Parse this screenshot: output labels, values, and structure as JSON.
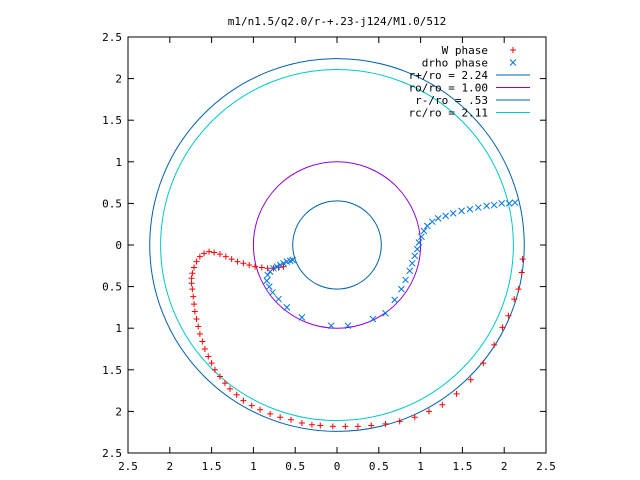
{
  "chart_data": {
    "type": "scatter",
    "title": "m1/n1.5/q2.0/r-+.23-j124/M1.0/512",
    "xlim": [
      -2.5,
      2.5
    ],
    "ylim": [
      -2.5,
      2.5
    ],
    "x_tick_values": [
      -2.5,
      -2,
      -1.5,
      -1,
      -0.5,
      0,
      0.5,
      1,
      1.5,
      2,
      2.5
    ],
    "x_tick_labels": [
      "2.5",
      "2",
      "1.5",
      "1",
      "0.5",
      "0",
      "0.5",
      "1",
      "1.5",
      "2",
      "2.5"
    ],
    "y_tick_values": [
      2.5,
      2,
      1.5,
      1,
      0.5,
      0,
      -0.5,
      -1,
      -1.5,
      -2,
      -2.5
    ],
    "y_tick_labels": [
      "2.5",
      "2",
      "1.5",
      "1",
      "0.5",
      "0",
      "0.5",
      "1",
      "1.5",
      "2",
      "2.5"
    ],
    "grid": false,
    "legend_position": "top-right",
    "series": [
      {
        "name": "W phase",
        "kind": "points",
        "marker": "plus",
        "color": "#ff0000",
        "points": [
          [
            2.22,
            -0.17
          ],
          [
            2.21,
            -0.33
          ],
          [
            2.17,
            -0.53
          ],
          [
            2.12,
            -0.65
          ],
          [
            2.05,
            -0.85
          ],
          [
            1.98,
            -0.99
          ],
          [
            1.88,
            -1.2
          ],
          [
            1.75,
            -1.42
          ],
          [
            1.6,
            -1.62
          ],
          [
            1.43,
            -1.79
          ],
          [
            1.26,
            -1.92
          ],
          [
            1.1,
            -2.0
          ],
          [
            0.93,
            -2.07
          ],
          [
            0.75,
            -2.12
          ],
          [
            0.58,
            -2.15
          ],
          [
            0.41,
            -2.17
          ],
          [
            0.25,
            -2.18
          ],
          [
            0.1,
            -2.18
          ],
          [
            -0.05,
            -2.18
          ],
          [
            -0.2,
            -2.17
          ],
          [
            -0.3,
            -2.16
          ],
          [
            -0.42,
            -2.14
          ],
          [
            -0.55,
            -2.1
          ],
          [
            -0.68,
            -2.07
          ],
          [
            -0.8,
            -2.03
          ],
          [
            -0.92,
            -1.98
          ],
          [
            -1.02,
            -1.93
          ],
          [
            -1.12,
            -1.87
          ],
          [
            -1.2,
            -1.8
          ],
          [
            -1.28,
            -1.73
          ],
          [
            -1.34,
            -1.66
          ],
          [
            -1.4,
            -1.58
          ],
          [
            -1.46,
            -1.5
          ],
          [
            -1.5,
            -1.42
          ],
          [
            -1.54,
            -1.34
          ],
          [
            -1.58,
            -1.25
          ],
          [
            -1.61,
            -1.16
          ],
          [
            -1.64,
            -1.07
          ],
          [
            -1.66,
            -0.98
          ],
          [
            -1.68,
            -0.89
          ],
          [
            -1.7,
            -0.8
          ],
          [
            -1.71,
            -0.71
          ],
          [
            -1.72,
            -0.62
          ],
          [
            -1.73,
            -0.53
          ],
          [
            -1.74,
            -0.46
          ],
          [
            -1.74,
            -0.4
          ],
          [
            -1.73,
            -0.34
          ],
          [
            -1.71,
            -0.27
          ],
          [
            -1.68,
            -0.2
          ],
          [
            -1.64,
            -0.14
          ],
          [
            -1.59,
            -0.1
          ],
          [
            -1.53,
            -0.08
          ],
          [
            -1.47,
            -0.09
          ],
          [
            -1.4,
            -0.11
          ],
          [
            -1.33,
            -0.14
          ],
          [
            -1.26,
            -0.17
          ],
          [
            -1.19,
            -0.2
          ],
          [
            -1.12,
            -0.22
          ],
          [
            -1.05,
            -0.24
          ],
          [
            -0.98,
            -0.26
          ],
          [
            -0.9,
            -0.27
          ],
          [
            -0.83,
            -0.28
          ],
          [
            -0.76,
            -0.28
          ],
          [
            -0.7,
            -0.27
          ],
          [
            -0.64,
            -0.26
          ]
        ]
      },
      {
        "name": "drho phase",
        "kind": "points",
        "marker": "cross",
        "color": "#0073e6",
        "points": [
          [
            2.13,
            0.51
          ],
          [
            2.06,
            0.5
          ],
          [
            1.97,
            0.5
          ],
          [
            1.88,
            0.48
          ],
          [
            1.79,
            0.47
          ],
          [
            1.69,
            0.45
          ],
          [
            1.59,
            0.43
          ],
          [
            1.49,
            0.41
          ],
          [
            1.39,
            0.38
          ],
          [
            1.3,
            0.35
          ],
          [
            1.21,
            0.32
          ],
          [
            1.14,
            0.28
          ],
          [
            1.08,
            0.23
          ],
          [
            1.04,
            0.17
          ],
          [
            1.01,
            0.1
          ],
          [
            0.98,
            0.03
          ],
          [
            0.96,
            -0.05
          ],
          [
            0.93,
            -0.13
          ],
          [
            0.9,
            -0.22
          ],
          [
            0.87,
            -0.31
          ],
          [
            0.82,
            -0.42
          ],
          [
            0.77,
            -0.53
          ],
          [
            0.69,
            -0.66
          ],
          [
            0.58,
            -0.82
          ],
          [
            0.43,
            -0.89
          ],
          [
            0.13,
            -0.97
          ],
          [
            -0.07,
            -0.97
          ],
          [
            -0.42,
            -0.87
          ],
          [
            -0.6,
            -0.75
          ],
          [
            -0.7,
            -0.65
          ],
          [
            -0.77,
            -0.57
          ],
          [
            -0.81,
            -0.5
          ],
          [
            -0.84,
            -0.43
          ],
          [
            -0.83,
            -0.36
          ],
          [
            -0.8,
            -0.32
          ],
          [
            -0.76,
            -0.28
          ],
          [
            -0.72,
            -0.26
          ],
          [
            -0.68,
            -0.24
          ],
          [
            -0.64,
            -0.22
          ],
          [
            -0.6,
            -0.2
          ],
          [
            -0.56,
            -0.19
          ],
          [
            -0.53,
            -0.18
          ]
        ]
      },
      {
        "name": "r+/ro = 2.24",
        "kind": "circle",
        "radius": 2.24,
        "color": "#0060ad"
      },
      {
        "name": "ro/ro = 1.00",
        "kind": "circle",
        "radius": 1.0,
        "color": "#9400d3"
      },
      {
        "name": "r-/ro = .53",
        "kind": "circle",
        "radius": 0.53,
        "color": "#0060ad"
      },
      {
        "name": "rc/ro = 2.11",
        "kind": "circle",
        "radius": 2.11,
        "color": "#00c8c8"
      }
    ]
  }
}
